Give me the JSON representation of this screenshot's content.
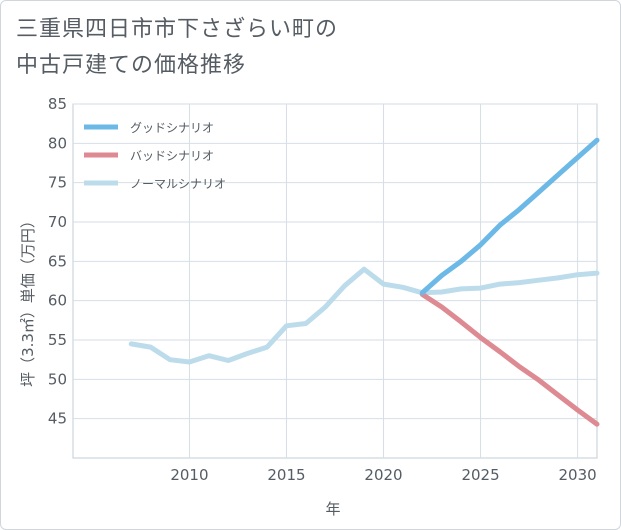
{
  "chart_data": {
    "type": "line",
    "title_line1": "三重県四日市市下さざらい町の",
    "title_line2": "中古戸建ての価格推移",
    "xlabel": "年",
    "ylabel": "坪（3.3㎡）単価（万円）",
    "xlim": [
      2004,
      2031
    ],
    "ylim": [
      40,
      85
    ],
    "xticks": [
      2010,
      2015,
      2020,
      2025,
      2030
    ],
    "yticks": [
      45,
      50,
      55,
      60,
      65,
      70,
      75,
      80,
      85
    ],
    "grid": true,
    "legend_position": "top-left",
    "series": [
      {
        "name": "グッドシナリオ",
        "color": "#6cb8e6",
        "x": [
          2022,
          2023,
          2024,
          2025,
          2026,
          2027,
          2028,
          2029,
          2030,
          2031
        ],
        "y": [
          61.0,
          63.2,
          65.0,
          67.1,
          69.6,
          71.6,
          73.8,
          76.0,
          78.2,
          80.4
        ]
      },
      {
        "name": "バッドシナリオ",
        "color": "#de8a92",
        "x": [
          2022,
          2023,
          2024,
          2025,
          2026,
          2027,
          2028,
          2029,
          2030,
          2031
        ],
        "y": [
          60.8,
          59.2,
          57.3,
          55.3,
          53.5,
          51.6,
          49.9,
          48.0,
          46.1,
          44.3
        ]
      },
      {
        "name": "ノーマルシナリオ",
        "color": "#bcdcec",
        "x": [
          2007,
          2008,
          2009,
          2010,
          2011,
          2012,
          2013,
          2014,
          2015,
          2016,
          2017,
          2018,
          2019,
          2020,
          2021,
          2022,
          2023,
          2024,
          2025,
          2026,
          2027,
          2028,
          2029,
          2030,
          2031
        ],
        "y": [
          54.5,
          54.1,
          52.5,
          52.2,
          53.0,
          52.4,
          53.3,
          54.1,
          56.8,
          57.1,
          59.2,
          61.9,
          64.0,
          62.1,
          61.7,
          61.0,
          61.1,
          61.5,
          61.6,
          62.1,
          62.3,
          62.6,
          62.9,
          63.3,
          63.5
        ]
      }
    ]
  }
}
